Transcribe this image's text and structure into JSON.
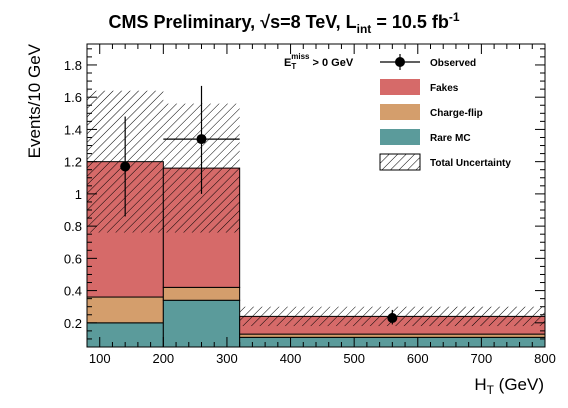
{
  "chart_data": {
    "type": "bar",
    "title": {
      "prefix": "CMS Preliminary, ",
      "sqrt_symbol": "√",
      "energy": "s=8 TeV, L",
      "lumi_sub": "int",
      "lumi_value": " = 10.5 fb",
      "lumi_sup": "-1"
    },
    "xlabel": {
      "main": "H",
      "sub": "T",
      "unit": " (GeV)"
    },
    "ylabel": "Events/10 GeV",
    "xlim": [
      80,
      800
    ],
    "ylim": [
      0.05,
      1.93
    ],
    "x_ticks": [
      100,
      200,
      300,
      400,
      500,
      600,
      700,
      800
    ],
    "y_ticks": [
      0.2,
      0.4,
      0.6,
      0.8,
      1,
      1.2,
      1.4,
      1.6,
      1.8
    ],
    "annotation": {
      "main": "E",
      "sub": "T",
      "sup": "miss",
      "rest": " > 0 GeV"
    },
    "bins": [
      {
        "low": 80,
        "high": 200,
        "rare_mc": 0.2,
        "charge_flip": 0.16,
        "fakes": 0.84,
        "unc_low": 0.76,
        "unc_high": 1.64
      },
      {
        "low": 200,
        "high": 320,
        "rare_mc": 0.34,
        "charge_flip": 0.08,
        "fakes": 0.74,
        "unc_low": 0.76,
        "unc_high": 1.56
      },
      {
        "low": 320,
        "high": 800,
        "rare_mc": 0.11,
        "charge_flip": 0.02,
        "fakes": 0.11,
        "unc_low": 0.18,
        "unc_high": 0.3
      }
    ],
    "observed": [
      {
        "x": 140,
        "y": 1.17,
        "xerr_low": 0,
        "xerr_high": 0,
        "yerr_low": 0.31,
        "yerr_high": 0.31
      },
      {
        "x": 260,
        "y": 1.34,
        "xerr_low": 60,
        "xerr_high": 60,
        "yerr_low": 0.34,
        "yerr_high": 0.33
      },
      {
        "x": 560,
        "y": 0.23,
        "xerr_low": 0,
        "xerr_high": 0,
        "yerr_low": 0.04,
        "yerr_high": 0.05
      }
    ],
    "legend": [
      {
        "key": "observed",
        "label": "Observed"
      },
      {
        "key": "fakes",
        "label": "Fakes"
      },
      {
        "key": "charge_flip",
        "label": "Charge-flip"
      },
      {
        "key": "rare_mc",
        "label": "Rare MC"
      },
      {
        "key": "total_uncertainty",
        "label": "Total Uncertainty"
      }
    ],
    "legend_position": "top-right",
    "colors": {
      "fakes": "#d66a69",
      "charge_flip": "#d49e6c",
      "rare_mc": "#5b9b9b",
      "hatch": "#000000"
    },
    "grid": false
  }
}
